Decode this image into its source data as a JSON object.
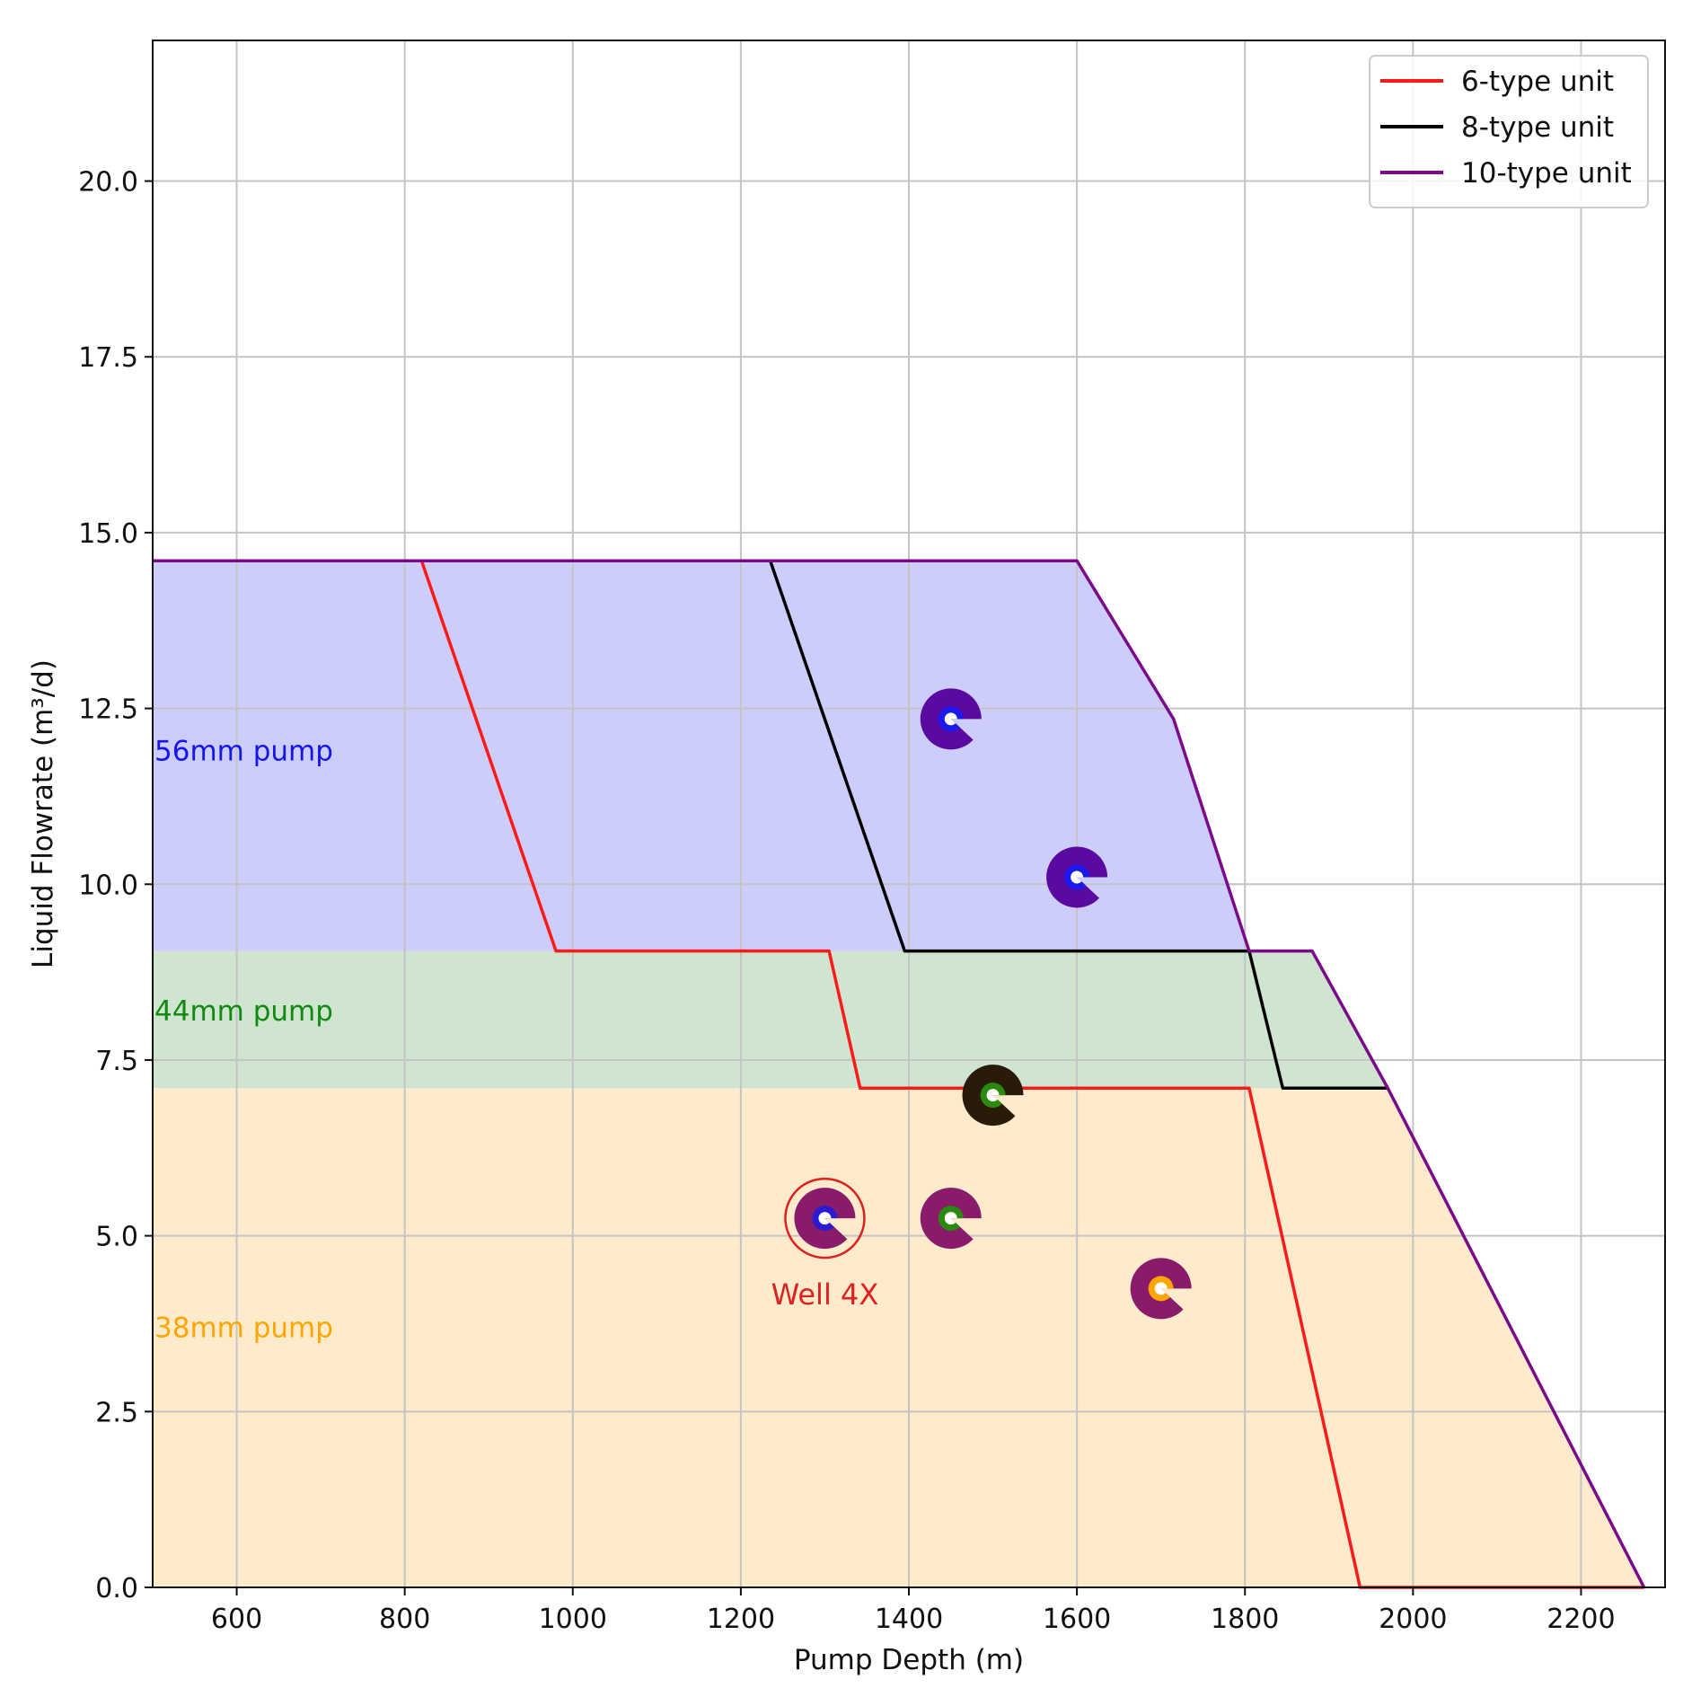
{
  "chart_data": {
    "type": "line",
    "xlabel": "Pump Depth (m)",
    "ylabel": "Liquid Flowrate (m³/d)",
    "xlim": [
      500,
      2300
    ],
    "ylim": [
      0,
      22
    ],
    "x_ticks": [
      600,
      800,
      1000,
      1200,
      1400,
      1600,
      1800,
      2000,
      2200
    ],
    "y_ticks": [
      0.0,
      2.5,
      5.0,
      7.5,
      10.0,
      12.5,
      15.0,
      17.5,
      20.0
    ],
    "x_tick_labels": [
      "600",
      "800",
      "1000",
      "1200",
      "1400",
      "1600",
      "1800",
      "2000",
      "2200"
    ],
    "y_tick_labels": [
      "0.0",
      "2.5",
      "5.0",
      "7.5",
      "10.0",
      "12.5",
      "15.0",
      "17.5",
      "20.0"
    ],
    "grid": true,
    "legend_position": "top-right",
    "regions": [
      {
        "label": "38mm pump",
        "y_range": [
          0,
          7.1
        ],
        "color": "#fdebcc",
        "label_color": "#ffa500"
      },
      {
        "label": "44mm pump",
        "y_range": [
          7.1,
          9.05
        ],
        "color": "#cfe5d0",
        "label_color": "#108a10"
      },
      {
        "label": "56mm pump",
        "y_range": [
          9.05,
          14.6
        ],
        "color": "#cdcdfb",
        "label_color": "#1515ee"
      }
    ],
    "region_fill_boundary": {
      "x": [
        500,
        1600,
        1715,
        1805,
        1880,
        1970,
        2275
      ],
      "y": [
        14.6,
        14.6,
        12.35,
        9.05,
        9.05,
        7.1,
        0
      ]
    },
    "series": [
      {
        "name": "6-type unit",
        "color": "#ff1a1a",
        "x": [
          500,
          820,
          980,
          1305,
          1342,
          1805,
          1937,
          2275
        ],
        "y": [
          14.6,
          14.6,
          9.05,
          9.05,
          7.1,
          7.1,
          0,
          0
        ]
      },
      {
        "name": "8-type unit",
        "color": "#000000",
        "x": [
          500,
          1235,
          1395,
          1805,
          1845,
          1970
        ],
        "y": [
          14.6,
          14.6,
          9.05,
          9.05,
          7.1,
          7.1
        ]
      },
      {
        "name": "10-type unit",
        "color": "#7a0a8a",
        "x": [
          500,
          1600,
          1715,
          1805,
          1880,
          1970,
          2275
        ],
        "y": [
          14.6,
          14.6,
          12.35,
          9.05,
          9.05,
          7.1,
          0
        ]
      }
    ],
    "wells": [
      {
        "x": 1450,
        "y": 12.35,
        "outer_color": "#5a0aa0",
        "inner_color": "#1a1aee"
      },
      {
        "x": 1600,
        "y": 10.1,
        "outer_color": "#5a0aa0",
        "inner_color": "#1a1aee"
      },
      {
        "x": 1500,
        "y": 7.0,
        "outer_color": "#2a1a0a",
        "inner_color": "#2a8a10"
      },
      {
        "x": 1300,
        "y": 5.25,
        "outer_color": "#8a1a6a",
        "inner_color": "#2a1ad0"
      },
      {
        "x": 1450,
        "y": 5.25,
        "outer_color": "#8a1a6a",
        "inner_color": "#2a8a10"
      },
      {
        "x": 1700,
        "y": 4.25,
        "outer_color": "#8a1a6a",
        "inner_color": "#ffa500"
      }
    ],
    "annotations": [
      {
        "text": "Well 4X",
        "x": 1300,
        "y": 5.25,
        "color": "#e02020"
      }
    ]
  }
}
